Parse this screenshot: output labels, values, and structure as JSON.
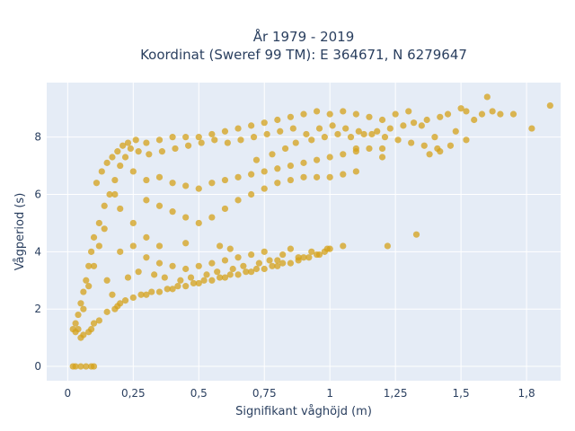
{
  "chart_data": {
    "type": "scatter",
    "title": "År 1979 - 2019",
    "subtitle": "Koordinat (Sweref 99 TM): E 364671, N 6279647",
    "xlabel": "Signifikant våghöjd (m)",
    "ylabel": "Vågperiod (s)",
    "xlim": [
      -0.08,
      1.88
    ],
    "ylim": [
      -0.5,
      9.9
    ],
    "x_ticks": [
      0,
      0.25,
      0.5,
      0.75,
      1,
      1.25,
      1.5,
      1.75
    ],
    "x_tick_labels": [
      "0",
      "0,25",
      "0,5",
      "0,75",
      "1",
      "1,25",
      "1,5",
      "1,8"
    ],
    "y_ticks": [
      0,
      2,
      4,
      6,
      8
    ],
    "y_tick_labels": [
      "0",
      "2",
      "4",
      "6",
      "8"
    ],
    "grid": true,
    "colors": {
      "marker": "#d4a21a",
      "plot_bg": "#e5ecf6",
      "grid": "#ffffff",
      "text": "#2a3f5f"
    },
    "points": [
      [
        0.02,
        1.3
      ],
      [
        0.03,
        1.5
      ],
      [
        0.04,
        1.8
      ],
      [
        0.05,
        2.2
      ],
      [
        0.06,
        2.6
      ],
      [
        0.07,
        3.0
      ],
      [
        0.08,
        3.5
      ],
      [
        0.09,
        4.0
      ],
      [
        0.1,
        4.5
      ],
      [
        0.12,
        5.0
      ],
      [
        0.14,
        5.6
      ],
      [
        0.16,
        6.0
      ],
      [
        0.18,
        6.5
      ],
      [
        0.2,
        7.0
      ],
      [
        0.22,
        7.3
      ],
      [
        0.24,
        7.6
      ],
      [
        0.26,
        7.9
      ],
      [
        0.3,
        7.8
      ],
      [
        0.35,
        7.9
      ],
      [
        0.4,
        8.0
      ],
      [
        0.45,
        8.0
      ],
      [
        0.5,
        8.0
      ],
      [
        0.55,
        8.1
      ],
      [
        0.6,
        8.2
      ],
      [
        0.65,
        8.3
      ],
      [
        0.7,
        8.4
      ],
      [
        0.75,
        8.5
      ],
      [
        0.8,
        8.6
      ],
      [
        0.85,
        8.7
      ],
      [
        0.9,
        8.8
      ],
      [
        0.95,
        8.9
      ],
      [
        1.0,
        8.8
      ],
      [
        1.05,
        8.9
      ],
      [
        1.1,
        8.8
      ],
      [
        1.15,
        8.7
      ],
      [
        1.2,
        8.6
      ],
      [
        1.25,
        8.8
      ],
      [
        1.3,
        8.9
      ],
      [
        1.35,
        8.4
      ],
      [
        1.4,
        8.0
      ],
      [
        1.45,
        8.8
      ],
      [
        1.5,
        9.0
      ],
      [
        1.52,
        8.9
      ],
      [
        1.55,
        8.6
      ],
      [
        1.58,
        8.8
      ],
      [
        1.6,
        9.4
      ],
      [
        1.62,
        8.9
      ],
      [
        1.65,
        8.8
      ],
      [
        1.7,
        8.8
      ],
      [
        1.77,
        8.3
      ],
      [
        1.84,
        9.1
      ],
      [
        1.48,
        8.2
      ],
      [
        1.52,
        7.9
      ],
      [
        1.42,
        7.5
      ],
      [
        1.38,
        7.4
      ],
      [
        1.33,
        4.6
      ],
      [
        1.22,
        4.2
      ],
      [
        1.2,
        7.3
      ],
      [
        1.1,
        7.6
      ],
      [
        1.05,
        4.2
      ],
      [
        1.0,
        4.1
      ],
      [
        0.98,
        4.0
      ],
      [
        0.95,
        3.9
      ],
      [
        0.9,
        3.8
      ],
      [
        0.85,
        3.6
      ],
      [
        0.8,
        3.5
      ],
      [
        0.75,
        3.4
      ],
      [
        0.7,
        3.3
      ],
      [
        0.65,
        3.2
      ],
      [
        0.6,
        3.1
      ],
      [
        0.55,
        3.0
      ],
      [
        0.5,
        2.9
      ],
      [
        0.45,
        2.8
      ],
      [
        0.4,
        2.7
      ],
      [
        0.35,
        2.6
      ],
      [
        0.3,
        2.5
      ],
      [
        0.25,
        2.4
      ],
      [
        0.2,
        2.2
      ],
      [
        0.15,
        1.9
      ],
      [
        0.1,
        1.5
      ],
      [
        0.08,
        1.2
      ],
      [
        0.06,
        1.1
      ],
      [
        0.05,
        1.0
      ],
      [
        0.04,
        1.3
      ],
      [
        0.03,
        1.2
      ],
      [
        0.02,
        0.0
      ],
      [
        0.03,
        0.0
      ],
      [
        0.05,
        0.0
      ],
      [
        0.07,
        0.0
      ],
      [
        0.09,
        0.0
      ],
      [
        0.1,
        0.0
      ],
      [
        0.09,
        1.3
      ],
      [
        0.12,
        1.6
      ],
      [
        0.18,
        2.0
      ],
      [
        0.22,
        2.3
      ],
      [
        0.28,
        2.5
      ],
      [
        0.32,
        2.6
      ],
      [
        0.38,
        2.7
      ],
      [
        0.42,
        2.8
      ],
      [
        0.48,
        2.9
      ],
      [
        0.52,
        3.0
      ],
      [
        0.58,
        3.1
      ],
      [
        0.62,
        3.2
      ],
      [
        0.68,
        3.3
      ],
      [
        0.72,
        3.4
      ],
      [
        0.78,
        3.5
      ],
      [
        0.82,
        3.6
      ],
      [
        0.88,
        3.7
      ],
      [
        0.92,
        3.8
      ],
      [
        0.96,
        3.9
      ],
      [
        0.85,
        4.1
      ],
      [
        0.8,
        3.7
      ],
      [
        0.62,
        4.1
      ],
      [
        0.58,
        4.2
      ],
      [
        0.45,
        4.3
      ],
      [
        0.35,
        4.2
      ],
      [
        0.3,
        4.5
      ],
      [
        0.25,
        5.0
      ],
      [
        0.2,
        5.5
      ],
      [
        0.18,
        6.0
      ],
      [
        0.14,
        4.8
      ],
      [
        0.12,
        4.2
      ],
      [
        0.1,
        3.5
      ],
      [
        0.08,
        2.8
      ],
      [
        0.06,
        2.0
      ],
      [
        0.11,
        6.4
      ],
      [
        0.13,
        6.8
      ],
      [
        0.15,
        7.1
      ],
      [
        0.17,
        7.3
      ],
      [
        0.19,
        7.5
      ],
      [
        0.21,
        7.7
      ],
      [
        0.23,
        7.8
      ],
      [
        0.27,
        7.5
      ],
      [
        0.31,
        7.4
      ],
      [
        0.36,
        7.5
      ],
      [
        0.41,
        7.6
      ],
      [
        0.46,
        7.7
      ],
      [
        0.51,
        7.8
      ],
      [
        0.56,
        7.9
      ],
      [
        0.61,
        7.8
      ],
      [
        0.66,
        7.9
      ],
      [
        0.71,
        8.0
      ],
      [
        0.76,
        8.1
      ],
      [
        0.81,
        8.2
      ],
      [
        0.86,
        8.3
      ],
      [
        0.91,
        8.1
      ],
      [
        0.96,
        8.3
      ],
      [
        1.01,
        8.4
      ],
      [
        1.06,
        8.3
      ],
      [
        1.11,
        8.2
      ],
      [
        1.16,
        8.1
      ],
      [
        1.21,
        8.0
      ],
      [
        1.26,
        7.9
      ],
      [
        1.31,
        7.8
      ],
      [
        1.36,
        7.7
      ],
      [
        1.41,
        7.6
      ],
      [
        1.46,
        7.7
      ],
      [
        0.25,
        6.8
      ],
      [
        0.3,
        6.5
      ],
      [
        0.35,
        6.6
      ],
      [
        0.4,
        6.4
      ],
      [
        0.45,
        6.3
      ],
      [
        0.5,
        6.2
      ],
      [
        0.55,
        6.4
      ],
      [
        0.6,
        6.5
      ],
      [
        0.65,
        6.6
      ],
      [
        0.7,
        6.7
      ],
      [
        0.75,
        6.8
      ],
      [
        0.8,
        6.9
      ],
      [
        0.85,
        7.0
      ],
      [
        0.9,
        7.1
      ],
      [
        0.95,
        7.2
      ],
      [
        1.0,
        7.3
      ],
      [
        1.05,
        7.4
      ],
      [
        1.1,
        7.5
      ],
      [
        1.15,
        7.6
      ],
      [
        1.2,
        7.6
      ],
      [
        0.3,
        5.8
      ],
      [
        0.35,
        5.6
      ],
      [
        0.4,
        5.4
      ],
      [
        0.45,
        5.2
      ],
      [
        0.5,
        5.0
      ],
      [
        0.55,
        5.2
      ],
      [
        0.6,
        5.5
      ],
      [
        0.65,
        5.8
      ],
      [
        0.7,
        6.0
      ],
      [
        0.75,
        6.2
      ],
      [
        0.8,
        6.4
      ],
      [
        0.85,
        6.5
      ],
      [
        0.9,
        6.6
      ],
      [
        0.95,
        6.6
      ],
      [
        1.0,
        6.6
      ],
      [
        1.05,
        6.7
      ],
      [
        1.1,
        6.8
      ],
      [
        0.2,
        4.0
      ],
      [
        0.25,
        4.2
      ],
      [
        0.3,
        3.8
      ],
      [
        0.35,
        3.6
      ],
      [
        0.4,
        3.5
      ],
      [
        0.45,
        3.4
      ],
      [
        0.5,
        3.5
      ],
      [
        0.55,
        3.6
      ],
      [
        0.6,
        3.7
      ],
      [
        0.65,
        3.8
      ],
      [
        0.7,
        3.9
      ],
      [
        0.75,
        4.0
      ],
      [
        0.82,
        3.9
      ],
      [
        0.88,
        3.8
      ],
      [
        0.93,
        4.0
      ],
      [
        0.99,
        4.1
      ],
      [
        0.72,
        7.2
      ],
      [
        0.78,
        7.4
      ],
      [
        0.83,
        7.6
      ],
      [
        0.87,
        7.8
      ],
      [
        0.93,
        7.9
      ],
      [
        0.98,
        8.0
      ],
      [
        1.03,
        8.1
      ],
      [
        1.08,
        8.0
      ],
      [
        1.13,
        8.1
      ],
      [
        1.18,
        8.2
      ],
      [
        1.23,
        8.3
      ],
      [
        1.28,
        8.4
      ],
      [
        1.32,
        8.5
      ],
      [
        1.37,
        8.6
      ],
      [
        1.42,
        8.7
      ],
      [
        0.15,
        3.0
      ],
      [
        0.17,
        2.5
      ],
      [
        0.19,
        2.1
      ],
      [
        0.23,
        3.1
      ],
      [
        0.27,
        3.3
      ],
      [
        0.33,
        3.2
      ],
      [
        0.37,
        3.1
      ],
      [
        0.43,
        3.0
      ],
      [
        0.47,
        3.1
      ],
      [
        0.53,
        3.2
      ],
      [
        0.57,
        3.3
      ],
      [
        0.63,
        3.4
      ],
      [
        0.67,
        3.5
      ],
      [
        0.73,
        3.6
      ],
      [
        0.77,
        3.7
      ]
    ]
  }
}
